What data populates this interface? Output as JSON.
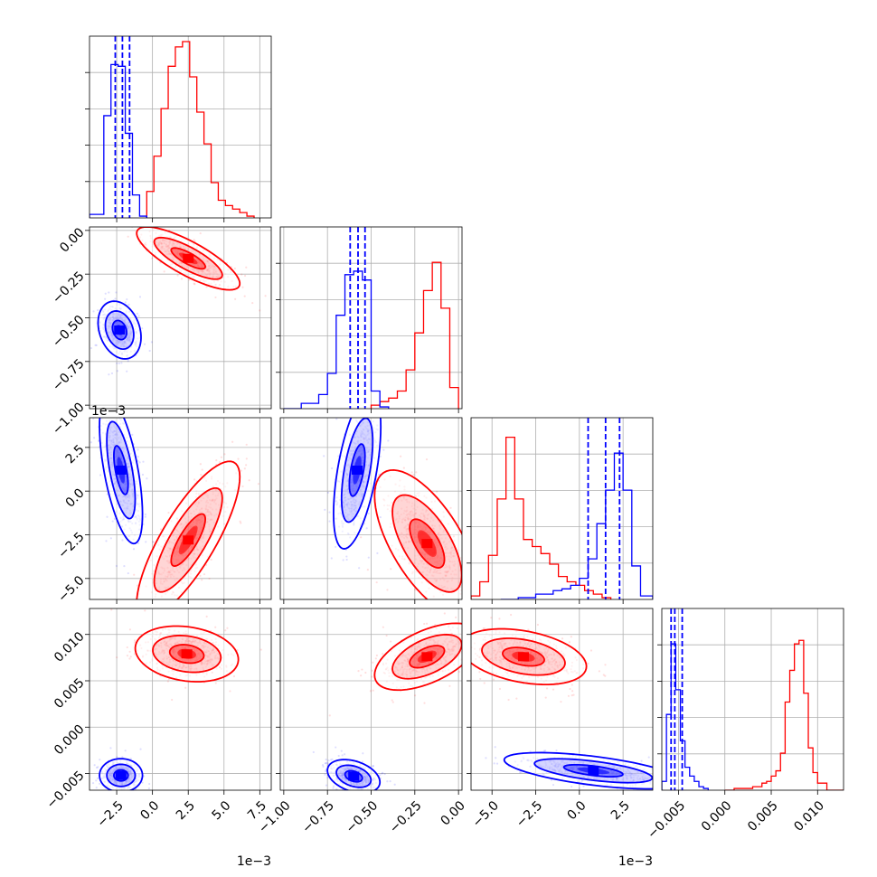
{
  "chart_data": {
    "type": "corner",
    "grid": true,
    "series": [
      {
        "name": "",
        "color": "#0000ff"
      },
      {
        "name": "",
        "color": "#ff0000"
      }
    ],
    "params": [
      {
        "index": 0,
        "range": [
          -0.0044,
          0.0083
        ],
        "offset_label": "1e−3",
        "ticks": [
          -0.0025,
          0.0,
          0.0025,
          0.005,
          0.0075
        ],
        "tick_labels": [
          "−2.5",
          "0.0",
          "2.5",
          "5.0",
          "7.5"
        ]
      },
      {
        "index": 1,
        "range": [
          -1.02,
          0.02
        ],
        "offset_label": "",
        "ticks": [
          -1.0,
          -0.75,
          -0.5,
          -0.25,
          0.0
        ],
        "tick_labels": [
          "−1.00",
          "−0.75",
          "−0.50",
          "−0.25",
          "0.00"
        ]
      },
      {
        "index": 2,
        "range": [
          -0.0062,
          0.0042
        ],
        "offset_label": "1e−3",
        "ticks": [
          -0.005,
          -0.0025,
          0.0,
          0.0025
        ],
        "tick_labels": [
          "−5.0",
          "−2.5",
          "0.0",
          "2.5"
        ]
      },
      {
        "index": 3,
        "range": [
          -0.0068,
          0.0128
        ],
        "offset_label": "",
        "ticks": [
          -0.005,
          0.0,
          0.005,
          0.01
        ],
        "tick_labels": [
          "−0.005",
          "0.000",
          "0.005",
          "0.010"
        ]
      }
    ],
    "histograms": [
      {
        "param": 0,
        "blue": {
          "edges": [
            -0.0044,
            -0.0034,
            -0.0029,
            -0.0024,
            -0.0019,
            -0.0014,
            -0.0009,
            -0.0004
          ],
          "counts": [
            0.02,
            0.58,
            0.87,
            0.86,
            0.48,
            0.13,
            0.01
          ],
          "quantiles": [
            -0.0026,
            -0.0021,
            -0.0016
          ]
        },
        "red": {
          "edges": [
            -0.0004,
            0.0001,
            0.0006,
            0.0011,
            0.0016,
            0.0021,
            0.0026,
            0.0031,
            0.0036,
            0.0041,
            0.0046,
            0.0051,
            0.0056,
            0.0061,
            0.0066,
            0.0071
          ],
          "counts": [
            0.15,
            0.35,
            0.62,
            0.86,
            0.97,
            1.0,
            0.8,
            0.6,
            0.42,
            0.2,
            0.1,
            0.07,
            0.05,
            0.03,
            0.01
          ]
        }
      },
      {
        "param": 1,
        "blue": {
          "edges": [
            -1.0,
            -0.9,
            -0.8,
            -0.75,
            -0.7,
            -0.65,
            -0.6,
            -0.55,
            -0.5,
            -0.45,
            -0.4
          ],
          "counts": [
            0.0,
            0.03,
            0.08,
            0.2,
            0.53,
            0.76,
            0.78,
            0.73,
            0.1,
            0.01
          ],
          "quantiles": [
            -0.62,
            -0.575,
            -0.535
          ]
        },
        "red": {
          "edges": [
            -0.5,
            -0.45,
            -0.4,
            -0.35,
            -0.3,
            -0.25,
            -0.2,
            -0.15,
            -0.1,
            -0.05,
            0.0
          ],
          "counts": [
            0.02,
            0.04,
            0.06,
            0.1,
            0.22,
            0.43,
            0.67,
            0.83,
            0.57,
            0.12
          ]
        }
      },
      {
        "param": 2,
        "blue": {
          "edges": [
            -0.0045,
            -0.0035,
            -0.0025,
            -0.0015,
            -0.001,
            -0.0005,
            0.0,
            0.0005,
            0.001,
            0.0015,
            0.002,
            0.0025,
            0.003,
            0.0035,
            0.0042
          ],
          "counts": [
            0.0,
            0.01,
            0.03,
            0.05,
            0.06,
            0.08,
            0.12,
            0.23,
            0.43,
            0.62,
            0.83,
            0.62,
            0.19,
            0.02
          ],
          "quantiles": [
            0.0005,
            0.0015,
            0.0023
          ]
        },
        "red": {
          "edges": [
            -0.0062,
            -0.0057,
            -0.0052,
            -0.0047,
            -0.0042,
            -0.0037,
            -0.0032,
            -0.0027,
            -0.0022,
            -0.0017,
            -0.0012,
            -0.0007,
            -0.0002,
            0.0003,
            0.0008,
            0.0013,
            0.0018
          ],
          "counts": [
            0.02,
            0.1,
            0.25,
            0.57,
            0.92,
            0.57,
            0.34,
            0.3,
            0.26,
            0.2,
            0.13,
            0.1,
            0.08,
            0.05,
            0.03,
            0.01
          ]
        }
      },
      {
        "param": 3,
        "blue": {
          "edges": [
            -0.0068,
            -0.0063,
            -0.0058,
            -0.0053,
            -0.0048,
            -0.0043,
            -0.0038,
            -0.0033,
            -0.0028,
            -0.0023,
            -0.0018
          ],
          "counts": [
            0.05,
            0.43,
            0.83,
            0.57,
            0.28,
            0.13,
            0.08,
            0.05,
            0.02,
            0.01
          ],
          "quantiles": [
            -0.0058,
            -0.0054,
            -0.0046
          ]
        },
        "red": {
          "edges": [
            0.0,
            0.001,
            0.002,
            0.003,
            0.004,
            0.0045,
            0.005,
            0.0055,
            0.006,
            0.0065,
            0.007,
            0.0075,
            0.008,
            0.0085,
            0.009,
            0.0095,
            0.01,
            0.011,
            0.0128
          ],
          "counts": [
            0.0,
            0.01,
            0.01,
            0.02,
            0.04,
            0.05,
            0.08,
            0.11,
            0.21,
            0.5,
            0.68,
            0.83,
            0.85,
            0.55,
            0.24,
            0.1,
            0.04,
            0.0
          ]
        }
      }
    ],
    "scatter_panels": [
      {
        "x_param": 0,
        "y_param": 1,
        "blue": {
          "center": [
            -0.0023,
            -0.57
          ],
          "sd": [
            0.0005,
            0.055
          ],
          "rho": -0.25
        },
        "red": {
          "center": [
            0.0025,
            -0.16
          ],
          "sd": [
            0.0012,
            0.06
          ],
          "rho": -0.8
        }
      },
      {
        "x_param": 0,
        "y_param": 2,
        "blue": {
          "center": [
            -0.0022,
            0.0012
          ],
          "sd": [
            0.0005,
            0.0014
          ],
          "rho": -0.6
        },
        "red": {
          "center": [
            0.0025,
            -0.0028
          ],
          "sd": [
            0.0012,
            0.0015
          ],
          "rho": 0.8
        }
      },
      {
        "x_param": 1,
        "y_param": 2,
        "blue": {
          "center": [
            -0.58,
            0.0012
          ],
          "sd": [
            0.045,
            0.0015
          ],
          "rho": 0.55
        },
        "red": {
          "center": [
            -0.18,
            -0.003
          ],
          "sd": [
            0.1,
            0.0014
          ],
          "rho": -0.65
        }
      },
      {
        "x_param": 0,
        "y_param": 3,
        "blue": {
          "center": [
            -0.0022,
            -0.0052
          ],
          "sd": [
            0.0005,
            0.0006
          ],
          "rho": 0.0
        },
        "red": {
          "center": [
            0.0024,
            0.0079
          ],
          "sd": [
            0.0012,
            0.001
          ],
          "rho": -0.2
        }
      },
      {
        "x_param": 1,
        "y_param": 3,
        "blue": {
          "center": [
            -0.6,
            -0.0053
          ],
          "sd": [
            0.05,
            0.0006
          ],
          "rho": -0.35
        },
        "red": {
          "center": [
            -0.18,
            0.0076
          ],
          "sd": [
            0.1,
            0.0012
          ],
          "rho": 0.55
        }
      },
      {
        "x_param": 2,
        "y_param": 3,
        "blue": {
          "center": [
            0.0008,
            -0.0047
          ],
          "sd": [
            0.0017,
            0.00065
          ],
          "rho": -0.6
        },
        "red": {
          "center": [
            -0.0032,
            0.0076
          ],
          "sd": [
            0.0012,
            0.001
          ],
          "rho": -0.35
        }
      }
    ]
  }
}
